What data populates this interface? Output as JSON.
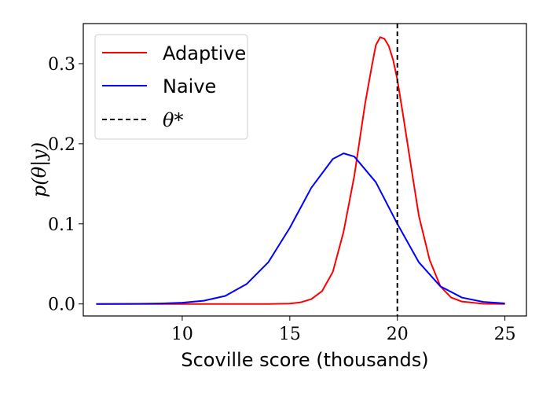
{
  "chart_data": {
    "type": "line",
    "xlabel": "Scoville score (thousands)",
    "ylabel": "p(θ|y)",
    "xlim": [
      5.4,
      26.0
    ],
    "ylim": [
      -0.015,
      0.35
    ],
    "xticks": [
      10,
      15,
      20,
      25
    ],
    "yticks": [
      0.0,
      0.1,
      0.2,
      0.3
    ],
    "xtick_labels": [
      "10",
      "15",
      "20",
      "25"
    ],
    "ytick_labels": [
      "0.0",
      "0.1",
      "0.2",
      "0.3"
    ],
    "legend_position": "upper-left",
    "grid": false,
    "series": [
      {
        "name": "Adaptive",
        "color": "#ff0000",
        "style": "solid",
        "x": [
          6,
          8,
          10,
          12,
          13,
          14,
          15,
          15.5,
          16,
          16.5,
          17,
          17.5,
          18,
          18.5,
          18.8,
          19,
          19.2,
          19.4,
          19.6,
          19.8,
          20,
          20.3,
          20.6,
          21,
          21.5,
          22,
          22.5,
          23,
          24,
          25
        ],
        "y": [
          0,
          0,
          0,
          0,
          0,
          0,
          0.0005,
          0.002,
          0.006,
          0.016,
          0.04,
          0.09,
          0.16,
          0.25,
          0.295,
          0.323,
          0.333,
          0.331,
          0.322,
          0.305,
          0.28,
          0.23,
          0.178,
          0.11,
          0.055,
          0.022,
          0.008,
          0.003,
          0.0002,
          0
        ]
      },
      {
        "name": "Naive",
        "color": "#0000ff",
        "style": "solid",
        "x": [
          6,
          8,
          9,
          10,
          11,
          12,
          13,
          14,
          15,
          16,
          17,
          17.5,
          18,
          19,
          20,
          21,
          22,
          23,
          24,
          25
        ],
        "y": [
          0,
          0.0002,
          0.0006,
          0.0015,
          0.004,
          0.01,
          0.025,
          0.052,
          0.095,
          0.145,
          0.181,
          0.188,
          0.184,
          0.152,
          0.1,
          0.052,
          0.022,
          0.008,
          0.0025,
          0.0007
        ]
      },
      {
        "name": "θ*",
        "color": "#000000",
        "style": "dashed",
        "vline_x": 20
      }
    ]
  }
}
